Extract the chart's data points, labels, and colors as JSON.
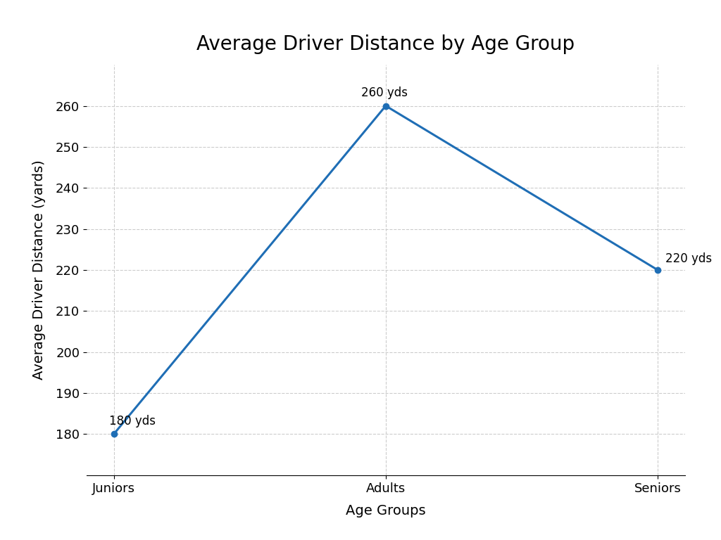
{
  "title": "Average Driver Distance by Age Group",
  "xlabel": "Age Groups",
  "ylabel": "Average Driver Distance (yards)",
  "categories": [
    "Juniors",
    "Adults",
    "Seniors"
  ],
  "values": [
    180,
    260,
    220
  ],
  "annotations": [
    "180 yds",
    "260 yds",
    "220 yds"
  ],
  "line_color": "#1f6eb5",
  "marker": "o",
  "marker_size": 6,
  "line_width": 2.2,
  "ylim": [
    170,
    270
  ],
  "yticks": [
    180,
    190,
    200,
    210,
    220,
    230,
    240,
    250,
    260
  ],
  "grid": true,
  "grid_style": "--",
  "grid_color": "#cccccc",
  "background_color": "#ffffff",
  "title_fontsize": 20,
  "label_fontsize": 14,
  "tick_fontsize": 13,
  "annotation_fontsize": 12
}
